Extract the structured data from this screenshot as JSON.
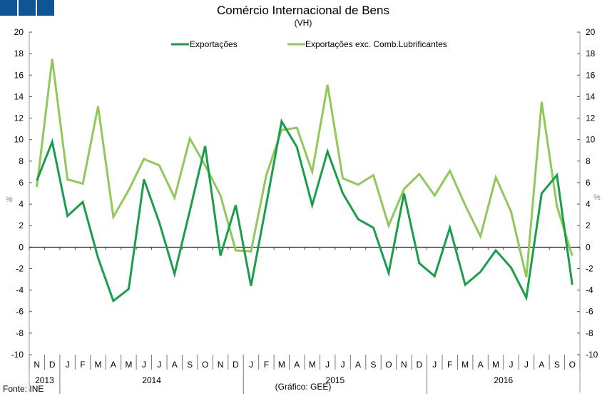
{
  "chart_data": {
    "type": "line",
    "title": "Comércio Internacional de Bens",
    "subtitle": "(VH)",
    "ylabel": "%",
    "ylabel_right": "%",
    "ylim": [
      -10,
      20
    ],
    "yticks": [
      -10,
      -8,
      -6,
      -4,
      -2,
      0,
      2,
      4,
      6,
      8,
      10,
      12,
      14,
      16,
      18,
      20
    ],
    "grid": false,
    "legend": "top",
    "categories": [
      "N",
      "D",
      "J",
      "F",
      "M",
      "A",
      "M",
      "J",
      "J",
      "A",
      "S",
      "O",
      "N",
      "D",
      "J",
      "F",
      "M",
      "A",
      "M",
      "J",
      "J",
      "A",
      "S",
      "O",
      "N",
      "D",
      "J",
      "F",
      "M",
      "A",
      "M",
      "J",
      "J",
      "A",
      "S",
      "O"
    ],
    "years": [
      {
        "label": "2013",
        "from": 0,
        "to": 1
      },
      {
        "label": "2014",
        "from": 2,
        "to": 13
      },
      {
        "label": "2015",
        "from": 14,
        "to": 25
      },
      {
        "label": "2016",
        "from": 26,
        "to": 35
      }
    ],
    "series": [
      {
        "name": "Exportações",
        "color": "#1a9e4a",
        "values": [
          6.2,
          9.8,
          2.9,
          4.2,
          -1.0,
          -5.0,
          -3.9,
          6.3,
          2.3,
          -2.5,
          3.4,
          9.4,
          -0.8,
          3.9,
          -3.6,
          4.0,
          11.7,
          9.3,
          3.9,
          8.9,
          5.0,
          2.6,
          1.8,
          -2.4,
          5.0,
          -1.5,
          -2.7,
          1.8,
          -3.5,
          -2.3,
          -0.3,
          -1.9,
          -4.7,
          5.0,
          6.7,
          -3.5
        ]
      },
      {
        "name": "Exportações exc. Comb.Lubrificantes",
        "color": "#92c85a",
        "values": [
          5.6,
          17.5,
          6.3,
          5.9,
          13.1,
          2.8,
          5.3,
          8.2,
          7.6,
          4.6,
          10.1,
          7.6,
          4.8,
          -0.3,
          -0.4,
          6.7,
          10.9,
          11.1,
          7.0,
          15.1,
          6.4,
          5.8,
          6.7,
          2.0,
          5.4,
          6.8,
          4.8,
          7.1,
          3.9,
          1.0,
          6.5,
          3.3,
          -2.8,
          13.5,
          3.8,
          -0.8
        ]
      }
    ]
  },
  "footer": {
    "source": "Fonte: INE",
    "credit": "(Gráfico: GEE)"
  }
}
